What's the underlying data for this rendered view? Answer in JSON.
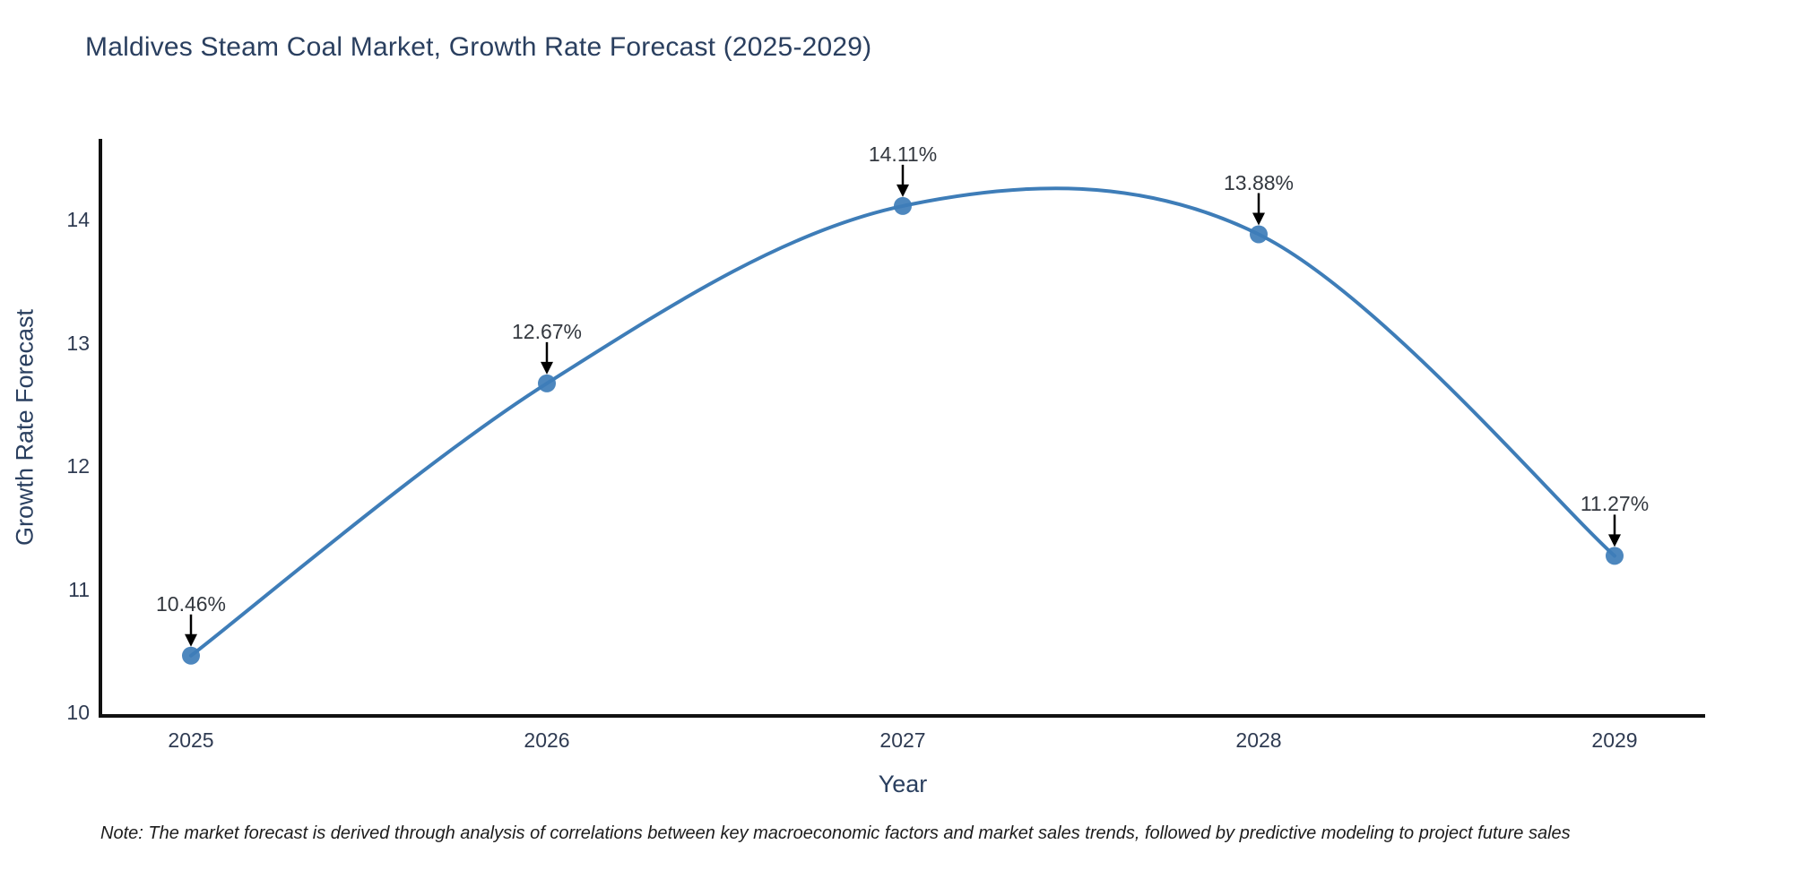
{
  "title": "Maldives Steam Coal Market, Growth Rate Forecast (2025-2029)",
  "note": "Note: The market forecast is derived through analysis of correlations between key macroeconomic factors and market sales trends, followed by predictive modeling to project future sales",
  "chart_data": {
    "type": "line",
    "line_shape": "spline",
    "markers": true,
    "grid": false,
    "legend": "none",
    "title": "Maldives Steam Coal Market, Growth Rate Forecast (2025-2029)",
    "xlabel": "Year",
    "ylabel": "Growth Rate Forecast",
    "x": [
      "2025",
      "2026",
      "2027",
      "2028",
      "2029"
    ],
    "series": [
      {
        "name": "Growth Rate Forecast",
        "values": [
          10.46,
          12.67,
          14.11,
          13.88,
          11.27
        ]
      }
    ],
    "point_labels": [
      "10.46%",
      "12.67%",
      "14.11%",
      "13.88%",
      "11.27%"
    ],
    "y_ticks": [
      10,
      11,
      12,
      13,
      14
    ],
    "ylim": [
      10,
      14.65
    ],
    "annotation_style": "black-arrow-above-point",
    "colors": {
      "line": "#3e7db8",
      "marker": "#3e7db8",
      "axis_line": "#111111",
      "annotation": "#000000",
      "annotation_text": "#33383f",
      "label_text": "#2a3f5f",
      "tick_text": "#2f3b52",
      "background": "#ffffff"
    }
  }
}
